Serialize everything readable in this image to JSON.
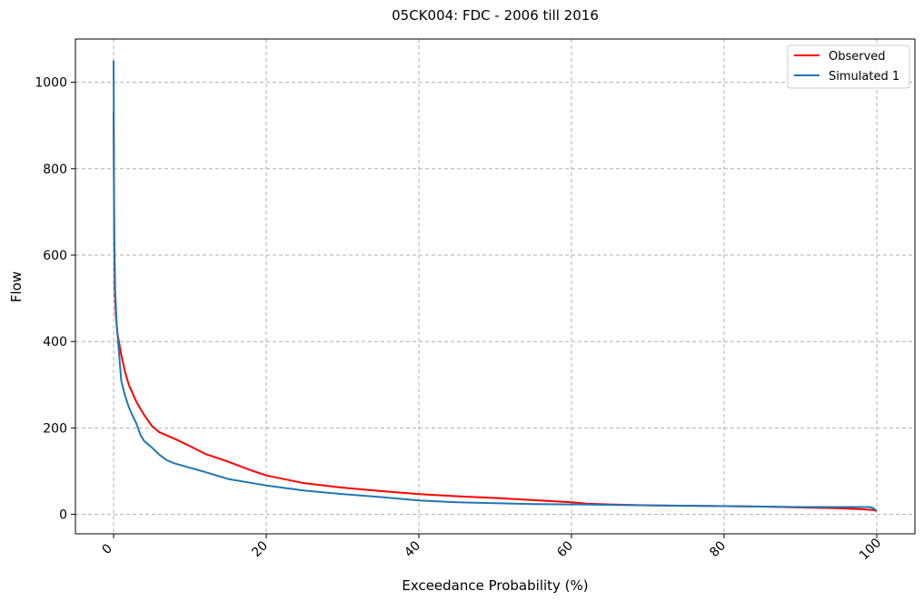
{
  "chart_data": {
    "type": "line",
    "title": "05CK004: FDC - 2006 till 2016",
    "xlabel": "Exceedance Probability (%)",
    "ylabel": "Flow",
    "xlim": [
      -5,
      105
    ],
    "ylim": [
      -45,
      1100
    ],
    "x_ticks": [
      0,
      20,
      40,
      60,
      80,
      100
    ],
    "y_ticks": [
      0,
      200,
      400,
      600,
      800,
      1000
    ],
    "grid": true,
    "legend_position": "upper right",
    "series": [
      {
        "name": "Observed",
        "color": "#ff0000",
        "x": [
          0,
          0.03,
          0.08,
          0.15,
          0.3,
          0.5,
          0.8,
          1,
          1.5,
          2,
          3,
          4,
          5,
          6,
          8,
          10,
          12,
          15,
          18,
          20,
          25,
          30,
          35,
          40,
          45,
          50,
          55,
          60,
          62,
          65,
          70,
          75,
          80,
          85,
          90,
          95,
          98,
          99.5,
          100
        ],
        "y": [
          930,
          800,
          650,
          520,
          460,
          420,
          390,
          370,
          330,
          300,
          260,
          230,
          205,
          190,
          175,
          158,
          140,
          122,
          102,
          90,
          72,
          62,
          54,
          47,
          42,
          38,
          33,
          28,
          25,
          23,
          21,
          20,
          19,
          18,
          16,
          14,
          12,
          10,
          8
        ]
      },
      {
        "name": "Simulated 1",
        "color": "#1f77b4",
        "x": [
          0,
          0.02,
          0.05,
          0.1,
          0.2,
          0.4,
          0.6,
          1,
          1.5,
          2,
          2.5,
          3,
          3.5,
          4,
          5,
          6,
          7,
          8,
          10,
          12,
          15,
          20,
          25,
          30,
          35,
          40,
          45,
          50,
          55,
          60,
          65,
          70,
          75,
          80,
          85,
          90,
          95,
          99,
          99.5,
          100
        ],
        "y": [
          1050,
          960,
          800,
          650,
          520,
          440,
          400,
          310,
          275,
          248,
          228,
          210,
          185,
          170,
          155,
          138,
          125,
          118,
          108,
          98,
          82,
          67,
          55,
          47,
          40,
          32,
          28,
          26,
          24,
          23,
          22,
          21,
          20,
          19,
          18,
          17,
          17,
          17,
          15,
          8
        ]
      }
    ]
  }
}
